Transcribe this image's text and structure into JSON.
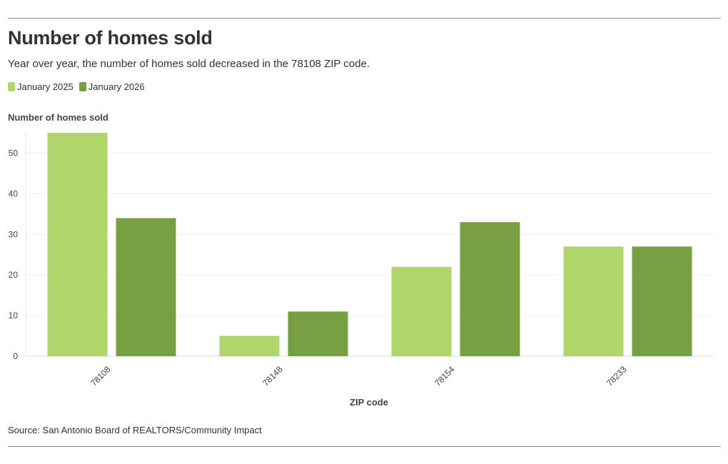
{
  "chart_data": {
    "type": "bar",
    "title": "Number of homes sold",
    "subtitle": "Year over year, the number of homes sold decreased in the 78108 ZIP code.",
    "categories": [
      "78108",
      "78148",
      "78154",
      "78233"
    ],
    "series": [
      {
        "name": "January 2025",
        "values": [
          55,
          5,
          22,
          27
        ],
        "color": "#b0d56a"
      },
      {
        "name": "January 2026",
        "values": [
          34,
          11,
          33,
          27
        ],
        "color": "#78a042"
      }
    ],
    "xlabel": "ZIP code",
    "ylabel": "Number of homes sold",
    "ylim": [
      0,
      55
    ],
    "yticks": [
      0,
      10,
      20,
      30,
      40,
      50
    ],
    "grid": true,
    "legend": "top-left",
    "source": "Source: San Antonio Board of REALTORS/Community Impact"
  }
}
